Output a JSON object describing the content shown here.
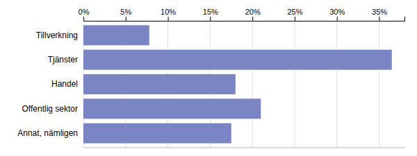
{
  "chart_data": {
    "type": "bar",
    "orientation": "horizontal",
    "categories": [
      "Annat, nämligen",
      "Offentlig sektor",
      "Handel",
      "Tjänster",
      "Tillverkning"
    ],
    "values": [
      17.5,
      21.0,
      18.0,
      36.5,
      7.8
    ],
    "color": "#7b85c4",
    "xlim": [
      0,
      38
    ],
    "xticks": [
      {
        "value": 0,
        "label": "0%"
      },
      {
        "value": 5,
        "label": "5%"
      },
      {
        "value": 10,
        "label": "10%"
      },
      {
        "value": 15,
        "label": "15%"
      },
      {
        "value": 20,
        "label": "20%"
      },
      {
        "value": 25,
        "label": "25%"
      },
      {
        "value": 30,
        "label": "30%"
      },
      {
        "value": 35,
        "label": "35%"
      }
    ],
    "grid": true
  }
}
